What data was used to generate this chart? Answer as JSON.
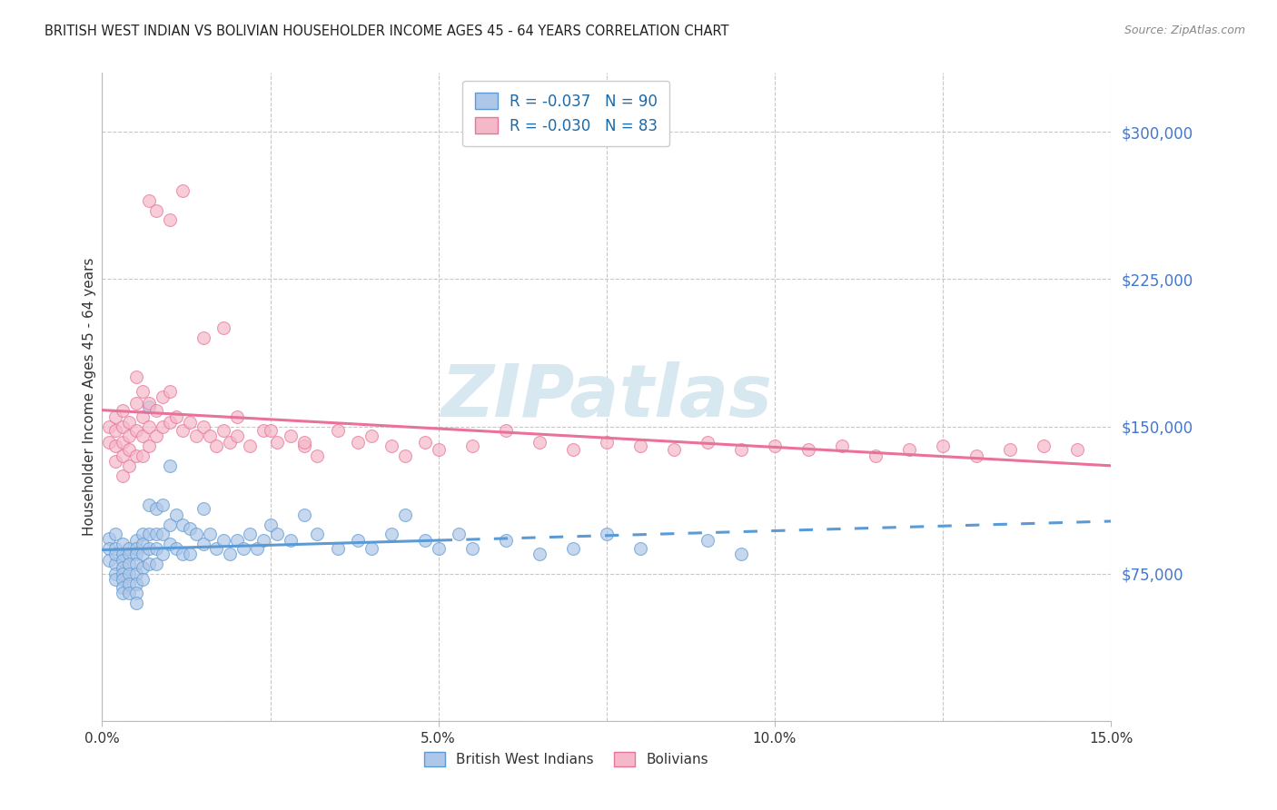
{
  "title": "BRITISH WEST INDIAN VS BOLIVIAN HOUSEHOLDER INCOME AGES 45 - 64 YEARS CORRELATION CHART",
  "source": "Source: ZipAtlas.com",
  "ylabel": "Householder Income Ages 45 - 64 years",
  "xlim": [
    0.0,
    0.15
  ],
  "ylim": [
    0,
    330000
  ],
  "yticks": [
    75000,
    150000,
    225000,
    300000
  ],
  "ytick_labels": [
    "$75,000",
    "$150,000",
    "$225,000",
    "$300,000"
  ],
  "xticks": [
    0.0,
    0.05,
    0.1,
    0.15
  ],
  "xtick_labels": [
    "0.0%",
    "5.0%",
    "10.0%",
    "15.0%"
  ],
  "legend_bwi_r": "-0.037",
  "legend_bwi_n": "90",
  "legend_bol_r": "-0.030",
  "legend_bol_n": "83",
  "bwi_color": "#aec6e8",
  "bol_color": "#f5b8c8",
  "bwi_edge_color": "#5b9bd5",
  "bol_edge_color": "#e8729a",
  "bwi_line_color": "#5b9bd5",
  "bol_line_color": "#e8729a",
  "watermark": "ZIPatlas",
  "background_color": "#ffffff",
  "grid_color": "#c8c8c8",
  "bwi_x": [
    0.001,
    0.001,
    0.001,
    0.002,
    0.002,
    0.002,
    0.002,
    0.002,
    0.002,
    0.003,
    0.003,
    0.003,
    0.003,
    0.003,
    0.003,
    0.003,
    0.003,
    0.004,
    0.004,
    0.004,
    0.004,
    0.004,
    0.004,
    0.005,
    0.005,
    0.005,
    0.005,
    0.005,
    0.005,
    0.005,
    0.005,
    0.006,
    0.006,
    0.006,
    0.006,
    0.006,
    0.007,
    0.007,
    0.007,
    0.007,
    0.007,
    0.008,
    0.008,
    0.008,
    0.008,
    0.009,
    0.009,
    0.009,
    0.01,
    0.01,
    0.01,
    0.011,
    0.011,
    0.012,
    0.012,
    0.013,
    0.013,
    0.014,
    0.015,
    0.015,
    0.016,
    0.017,
    0.018,
    0.019,
    0.02,
    0.021,
    0.022,
    0.023,
    0.024,
    0.025,
    0.026,
    0.028,
    0.03,
    0.032,
    0.035,
    0.038,
    0.04,
    0.043,
    0.045,
    0.048,
    0.05,
    0.053,
    0.055,
    0.06,
    0.065,
    0.07,
    0.075,
    0.08,
    0.09,
    0.095
  ],
  "bwi_y": [
    93000,
    88000,
    82000,
    95000,
    88000,
    80000,
    75000,
    72000,
    85000,
    90000,
    85000,
    82000,
    78000,
    75000,
    72000,
    68000,
    65000,
    88000,
    85000,
    80000,
    75000,
    70000,
    65000,
    92000,
    88000,
    85000,
    80000,
    75000,
    70000,
    65000,
    60000,
    95000,
    90000,
    85000,
    78000,
    72000,
    160000,
    110000,
    95000,
    88000,
    80000,
    108000,
    95000,
    88000,
    80000,
    110000,
    95000,
    85000,
    130000,
    100000,
    90000,
    105000,
    88000,
    100000,
    85000,
    98000,
    85000,
    95000,
    108000,
    90000,
    95000,
    88000,
    92000,
    85000,
    92000,
    88000,
    95000,
    88000,
    92000,
    100000,
    95000,
    92000,
    105000,
    95000,
    88000,
    92000,
    88000,
    95000,
    105000,
    92000,
    88000,
    95000,
    88000,
    92000,
    85000,
    88000,
    95000,
    88000,
    92000,
    85000
  ],
  "bol_x": [
    0.001,
    0.001,
    0.002,
    0.002,
    0.002,
    0.002,
    0.003,
    0.003,
    0.003,
    0.003,
    0.003,
    0.004,
    0.004,
    0.004,
    0.004,
    0.005,
    0.005,
    0.005,
    0.005,
    0.006,
    0.006,
    0.006,
    0.006,
    0.007,
    0.007,
    0.007,
    0.008,
    0.008,
    0.009,
    0.009,
    0.01,
    0.01,
    0.011,
    0.012,
    0.013,
    0.014,
    0.015,
    0.016,
    0.017,
    0.018,
    0.019,
    0.02,
    0.022,
    0.024,
    0.026,
    0.028,
    0.03,
    0.032,
    0.035,
    0.038,
    0.04,
    0.043,
    0.045,
    0.048,
    0.05,
    0.055,
    0.06,
    0.065,
    0.07,
    0.075,
    0.08,
    0.085,
    0.09,
    0.095,
    0.1,
    0.105,
    0.11,
    0.115,
    0.12,
    0.125,
    0.13,
    0.135,
    0.14,
    0.145,
    0.02,
    0.025,
    0.03,
    0.007,
    0.008,
    0.01,
    0.012,
    0.015,
    0.018
  ],
  "bol_y": [
    150000,
    142000,
    155000,
    148000,
    140000,
    132000,
    158000,
    150000,
    142000,
    135000,
    125000,
    152000,
    145000,
    138000,
    130000,
    175000,
    162000,
    148000,
    135000,
    168000,
    155000,
    145000,
    135000,
    162000,
    150000,
    140000,
    158000,
    145000,
    165000,
    150000,
    168000,
    152000,
    155000,
    148000,
    152000,
    145000,
    150000,
    145000,
    140000,
    148000,
    142000,
    145000,
    140000,
    148000,
    142000,
    145000,
    140000,
    135000,
    148000,
    142000,
    145000,
    140000,
    135000,
    142000,
    138000,
    140000,
    148000,
    142000,
    138000,
    142000,
    140000,
    138000,
    142000,
    138000,
    140000,
    138000,
    140000,
    135000,
    138000,
    140000,
    135000,
    138000,
    140000,
    138000,
    155000,
    148000,
    142000,
    265000,
    260000,
    255000,
    270000,
    195000,
    200000
  ]
}
